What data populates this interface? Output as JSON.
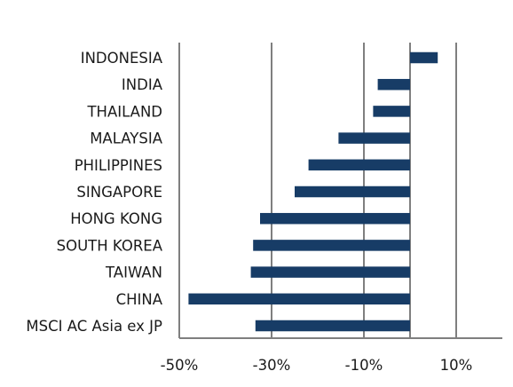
{
  "chart_data": {
    "type": "bar",
    "orientation": "horizontal",
    "title": "",
    "xlabel": "",
    "ylabel": "",
    "categories": [
      "INDONESIA",
      "INDIA",
      "THAILAND",
      "MALAYSIA",
      "PHILIPPINES",
      "SINGAPORE",
      "HONG KONG",
      "SOUTH KOREA",
      "TAIWAN",
      "CHINA",
      "MSCI AC Asia ex JP"
    ],
    "values": [
      6,
      -7,
      -8,
      -15.5,
      -22,
      -25,
      -32.5,
      -34,
      -34.5,
      -48,
      -33.5
    ],
    "xlim": [
      -50,
      20
    ],
    "xticks": [
      -50,
      -30,
      -10,
      10
    ],
    "xtick_labels": [
      "-50%",
      "-30%",
      "-10%",
      "10%"
    ],
    "grid": "vertical",
    "bar_color": "#173c66",
    "grid_color": "#7f7f7f"
  }
}
